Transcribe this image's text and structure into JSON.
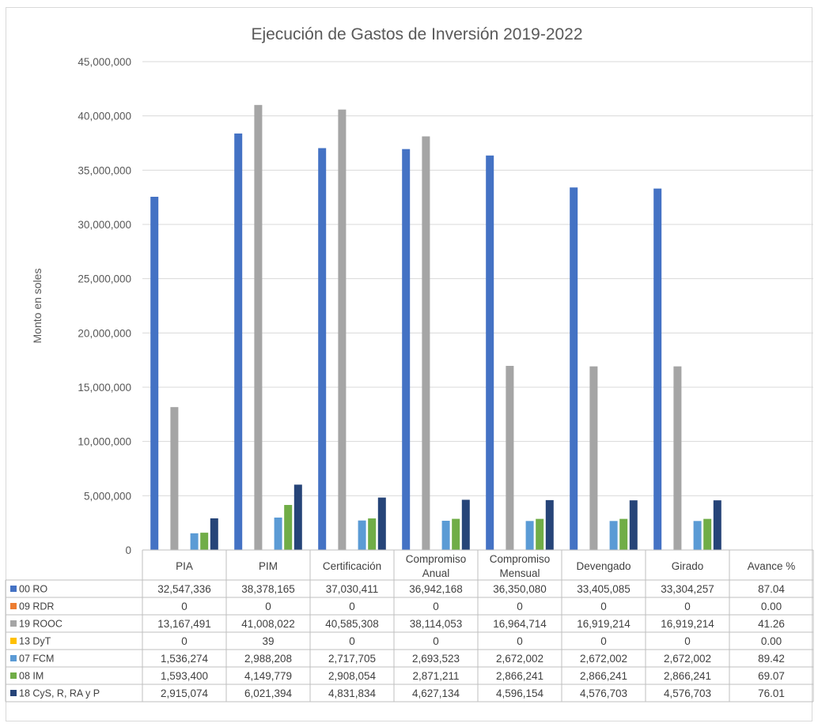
{
  "chart_data": {
    "type": "bar",
    "title": "Ejecución de Gastos de Inversión 2019-2022",
    "ylabel": "Monto en soles",
    "xlabel": "",
    "ylim": [
      0,
      45000000
    ],
    "yticks": [
      "0",
      "5,000,000",
      "10,000,000",
      "15,000,000",
      "20,000,000",
      "25,000,000",
      "30,000,000",
      "35,000,000",
      "40,000,000",
      "45,000,000"
    ],
    "grid": true,
    "legend": "data-table",
    "categories": [
      [
        "PIA"
      ],
      [
        "PIM"
      ],
      [
        "Certificación"
      ],
      [
        "Compromiso",
        "Anual"
      ],
      [
        "Compromiso",
        "Mensual"
      ],
      [
        "Devengado"
      ],
      [
        "Girado"
      ],
      [
        "Avance %"
      ]
    ],
    "series": [
      {
        "name": "00 RO",
        "color": "#4472c4",
        "values": [
          32547336,
          38378165,
          37030411,
          36942168,
          36350080,
          33405085,
          33304257,
          87.04
        ],
        "labels": [
          "32,547,336",
          "38,378,165",
          "37,030,411",
          "36,942,168",
          "36,350,080",
          "33,405,085",
          "33,304,257",
          "87.04"
        ]
      },
      {
        "name": "09 RDR",
        "color": "#ed7d31",
        "values": [
          0,
          0,
          0,
          0,
          0,
          0,
          0,
          0.0
        ],
        "labels": [
          "0",
          "0",
          "0",
          "0",
          "0",
          "0",
          "0",
          "0.00"
        ]
      },
      {
        "name": "19 ROOC",
        "color": "#a5a5a5",
        "values": [
          13167491,
          41008022,
          40585308,
          38114053,
          16964714,
          16919214,
          16919214,
          41.26
        ],
        "labels": [
          "13,167,491",
          "41,008,022",
          "40,585,308",
          "38,114,053",
          "16,964,714",
          "16,919,214",
          "16,919,214",
          "41.26"
        ]
      },
      {
        "name": "13 DyT",
        "color": "#ffc000",
        "values": [
          0,
          39,
          0,
          0,
          0,
          0,
          0,
          0.0
        ],
        "labels": [
          "0",
          "39",
          "0",
          "0",
          "0",
          "0",
          "0",
          "0.00"
        ]
      },
      {
        "name": "07 FCM",
        "color": "#5b9bd5",
        "values": [
          1536274,
          2988208,
          2717705,
          2693523,
          2672002,
          2672002,
          2672002,
          89.42
        ],
        "labels": [
          "1,536,274",
          "2,988,208",
          "2,717,705",
          "2,693,523",
          "2,672,002",
          "2,672,002",
          "2,672,002",
          "89.42"
        ]
      },
      {
        "name": "08 IM",
        "color": "#70ad47",
        "values": [
          1593400,
          4149779,
          2908054,
          2871211,
          2866241,
          2866241,
          2866241,
          69.07
        ],
        "labels": [
          "1,593,400",
          "4,149,779",
          "2,908,054",
          "2,871,211",
          "2,866,241",
          "2,866,241",
          "2,866,241",
          "69.07"
        ]
      },
      {
        "name": "18 CyS, R, RA y P",
        "color": "#264478",
        "values": [
          2915074,
          6021394,
          4831834,
          4627134,
          4596154,
          4576703,
          4576703,
          76.01
        ],
        "labels": [
          "2,915,074",
          "6,021,394",
          "4,831,834",
          "4,627,134",
          "4,596,154",
          "4,576,703",
          "4,576,703",
          "76.01"
        ]
      }
    ]
  }
}
